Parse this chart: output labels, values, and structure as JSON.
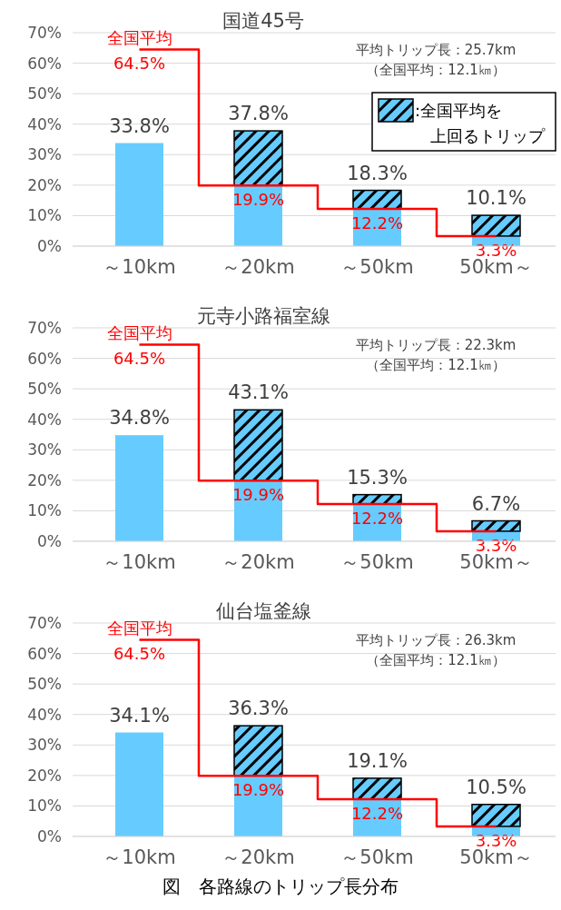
{
  "chart_data": [
    {
      "type": "bar",
      "title": "国道45号",
      "categories": [
        "～10km",
        "～20km",
        "～50km",
        "50km～"
      ],
      "stacked": true,
      "series": [
        {
          "color": "#66ccff",
          "values": [
            33.8,
            19.9,
            12.2,
            3.3
          ]
        },
        {
          "name": ":全国平均を上回るトリップ",
          "color": "#66ccff",
          "values": [
            null,
            17.9,
            6.1,
            6.8
          ]
        },
        {
          "type": "step",
          "name": "全国平均",
          "color": "#ff0000",
          "values": [
            64.5,
            19.9,
            12.2,
            3.3
          ],
          "value_labels": [
            "64.5%",
            "19.9%",
            "12.2%",
            "3.3%"
          ]
        }
      ],
      "totals": [
        "33.8%",
        "37.8%",
        "18.3%",
        "10.1%"
      ],
      "ylim": [
        0,
        70
      ],
      "yticks": [
        {
          "value": 0,
          "label": "0%"
        },
        {
          "value": 10,
          "label": "10%"
        },
        {
          "value": 20,
          "label": "20%"
        },
        {
          "value": 30,
          "label": "30%"
        },
        {
          "value": 40,
          "label": "40%"
        },
        {
          "value": 50,
          "label": "50%"
        },
        {
          "value": 60,
          "label": "60%"
        },
        {
          "value": 70,
          "label": "70%"
        }
      ],
      "grid": "y",
      "legend": "top right",
      "annotations": [
        "平均トリップ長：25.7km",
        "（全国平均：12.1㎞）"
      ]
    },
    {
      "type": "bar",
      "title": "元寺小路福室線",
      "categories": [
        "～10km",
        "～20km",
        "～50km",
        "50km～"
      ],
      "stacked": true,
      "series": [
        {
          "color": "#66ccff",
          "values": [
            34.8,
            19.9,
            12.2,
            3.3
          ]
        },
        {
          "color": "#66ccff",
          "values": [
            null,
            23.2,
            3.1,
            3.4
          ]
        },
        {
          "type": "step",
          "name": "全国平均",
          "color": "#ff0000",
          "values": [
            64.5,
            19.9,
            12.2,
            3.3
          ],
          "value_labels": [
            "64.5%",
            "19.9%",
            "12.2%",
            "3.3%"
          ]
        }
      ],
      "totals": [
        "34.8%",
        "43.1%",
        "15.3%",
        "6.7%"
      ],
      "ylim": [
        0,
        70
      ],
      "yticks": [
        {
          "value": 0,
          "label": "0%"
        },
        {
          "value": 10,
          "label": "10%"
        },
        {
          "value": 20,
          "label": "20%"
        },
        {
          "value": 30,
          "label": "30%"
        },
        {
          "value": 40,
          "label": "40%"
        },
        {
          "value": 50,
          "label": "50%"
        },
        {
          "value": 60,
          "label": "60%"
        },
        {
          "value": 70,
          "label": "70%"
        }
      ],
      "grid": "y",
      "annotations": [
        "平均トリップ長：22.3km",
        "（全国平均：12.1㎞）"
      ]
    },
    {
      "type": "bar",
      "title": "仙台塩釜線",
      "categories": [
        "～10km",
        "～20km",
        "～50km",
        "50km～"
      ],
      "stacked": true,
      "series": [
        {
          "color": "#66ccff",
          "values": [
            34.1,
            19.9,
            12.2,
            3.3
          ]
        },
        {
          "color": "#66ccff",
          "values": [
            null,
            16.4,
            6.9,
            7.2
          ]
        },
        {
          "type": "step",
          "name": "全国平均",
          "color": "#ff0000",
          "values": [
            64.5,
            19.9,
            12.2,
            3.3
          ],
          "value_labels": [
            "64.5%",
            "19.9%",
            "12.2%",
            "3.3%"
          ]
        }
      ],
      "totals": [
        "34.1%",
        "36.3%",
        "19.1%",
        "10.5%"
      ],
      "ylim": [
        0,
        70
      ],
      "yticks": [
        {
          "value": 0,
          "label": "0%"
        },
        {
          "value": 10,
          "label": "10%"
        },
        {
          "value": 20,
          "label": "20%"
        },
        {
          "value": 30,
          "label": "30%"
        },
        {
          "value": 40,
          "label": "40%"
        },
        {
          "value": 50,
          "label": "50%"
        },
        {
          "value": 60,
          "label": "60%"
        },
        {
          "value": 70,
          "label": "70%"
        }
      ],
      "grid": "y",
      "annotations": [
        "平均トリップ長：26.3km",
        "（全国平均：12.1㎞）",
        "図　各路線のトリップ長分布"
      ]
    }
  ]
}
